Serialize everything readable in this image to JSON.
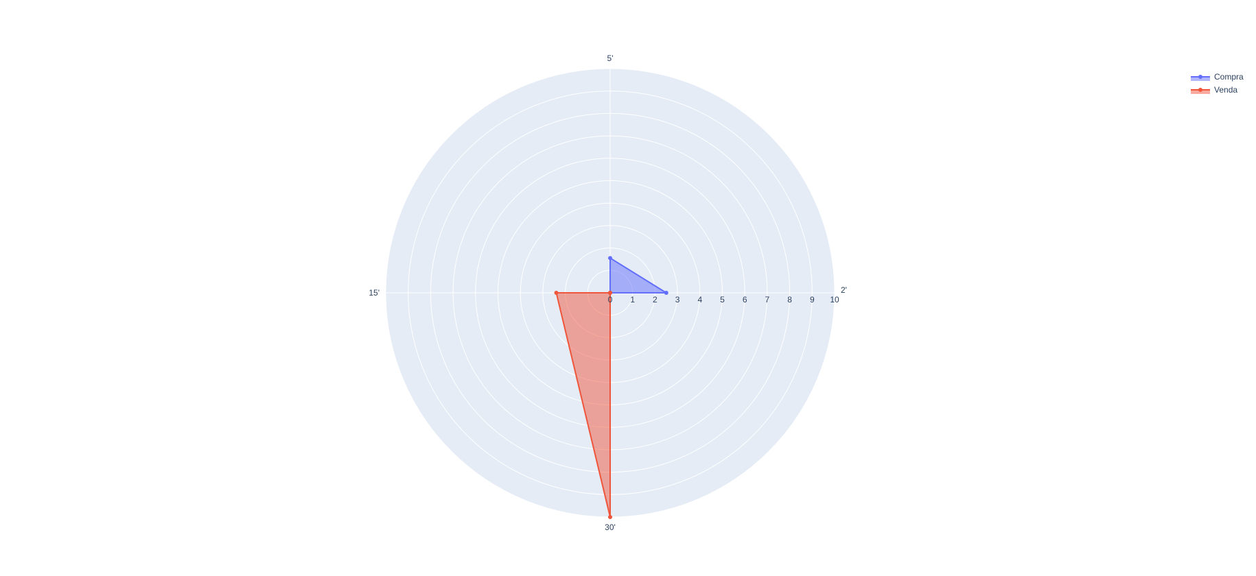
{
  "chart_data": {
    "type": "radar",
    "categories": [
      "2'",
      "5'",
      "15'",
      "30'"
    ],
    "angular_axis": {
      "direction": "counterclockwise",
      "rotation_deg": 0
    },
    "radial_axis": {
      "range": [
        0,
        10
      ],
      "tick_labels": [
        "0",
        "1",
        "2",
        "3",
        "4",
        "5",
        "6",
        "7",
        "8",
        "9",
        "10"
      ]
    },
    "series": [
      {
        "name": "Compra",
        "values": [
          2.5,
          1.55,
          0,
          0
        ],
        "color": "#636efa",
        "fill": "toself"
      },
      {
        "name": "Venda",
        "values": [
          0,
          0,
          2.4,
          10
        ],
        "color": "#ef553b",
        "fill": "toself"
      }
    ],
    "legend_position": "top-right",
    "grid": true,
    "plot_bgcolor": "#e5ecf6"
  }
}
